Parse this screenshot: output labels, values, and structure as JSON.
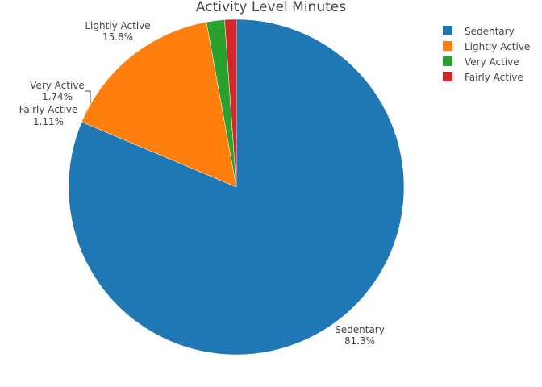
{
  "chart_data": {
    "type": "pie",
    "title": "Activity Level Minutes",
    "slices": [
      {
        "label": "Sedentary",
        "percent_text": "81.3%",
        "value": 81.3,
        "color": "#1f77b4"
      },
      {
        "label": "Lightly Active",
        "percent_text": "15.8%",
        "value": 15.8,
        "color": "#ff7f0e"
      },
      {
        "label": "Very Active",
        "percent_text": "1.74%",
        "value": 1.74,
        "color": "#2ca02c"
      },
      {
        "label": "Fairly Active",
        "percent_text": "1.11%",
        "value": 1.11,
        "color": "#d62728"
      }
    ],
    "direction": "clockwise",
    "start_angle": "top",
    "legend_position": "top-right"
  }
}
